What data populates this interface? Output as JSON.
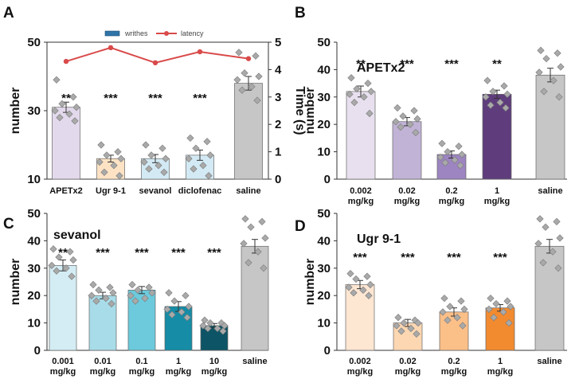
{
  "chart_data": [
    {
      "panel": "A",
      "type": "bar",
      "ylabel": "number",
      "ylim": [
        10,
        50
      ],
      "yticks": [
        10,
        30,
        50
      ],
      "categories": [
        "APETx2",
        "Ugr 9-1",
        "sevanol",
        "diclofenac",
        "saline"
      ],
      "values": [
        31,
        16,
        16,
        17,
        38
      ],
      "errors": [
        1.5,
        1.0,
        1.2,
        1.5,
        2.0
      ],
      "significance": [
        "**",
        "***",
        "***",
        "***",
        ""
      ],
      "colors": [
        "#e3d9ec",
        "#fde3c4",
        "#d3eaf5",
        "#d3eaf5",
        "#c6c6c6"
      ],
      "points": [
        [
          39,
          34,
          32,
          31,
          30,
          29,
          28,
          27
        ],
        [
          20,
          18,
          17,
          16,
          15,
          14,
          12,
          11
        ],
        [
          20,
          19,
          17,
          16,
          15,
          14,
          13,
          12
        ],
        [
          22,
          21,
          19,
          17,
          16,
          14,
          13,
          11
        ],
        [
          47,
          46,
          41,
          40,
          39,
          37,
          36,
          33
        ]
      ],
      "secondary_axis": {
        "label": "Time (s)",
        "ylim": [
          0,
          5
        ],
        "ticks": [
          0,
          1,
          2,
          3,
          4,
          5
        ]
      },
      "latency": [
        4.3,
        4.8,
        4.25,
        4.65,
        4.4
      ],
      "legend": {
        "bars": "writhes",
        "line": "latency",
        "placement": "top-center"
      },
      "line_color": "#d94a4a",
      "legend_bar_color": "#2f74a8"
    },
    {
      "panel": "B",
      "type": "bar",
      "title": "APETx2",
      "ylabel": "number",
      "ylim": [
        0,
        50
      ],
      "yticks": [
        0,
        10,
        20,
        30,
        40,
        50
      ],
      "categories": [
        [
          "0.002",
          "mg/kg"
        ],
        [
          "0.02",
          "mg/kg"
        ],
        [
          "0.2",
          "mg/kg"
        ],
        [
          "1",
          "mg/kg"
        ],
        [
          "saline"
        ]
      ],
      "values": [
        32,
        21,
        9,
        31,
        38
      ],
      "errors": [
        2.0,
        1.5,
        1.3,
        1.5,
        2.5
      ],
      "significance": [
        "**",
        "***",
        "***",
        "**",
        ""
      ],
      "colors": [
        "#e8e0ee",
        "#c1b3d6",
        "#9d85c1",
        "#5f3d7c",
        "#c6c6c6"
      ],
      "points": [
        [
          37,
          35,
          33,
          32,
          31,
          30,
          28,
          24
        ],
        [
          26,
          25,
          23,
          22,
          21,
          20,
          19,
          17
        ],
        [
          13,
          12,
          10,
          9,
          8,
          7,
          6,
          5
        ],
        [
          36,
          34,
          32,
          31,
          30,
          28,
          27,
          26
        ],
        [
          47,
          46,
          44,
          41,
          39,
          36,
          32,
          30
        ]
      ]
    },
    {
      "panel": "C",
      "type": "bar",
      "title": "sevanol",
      "ylabel": "number",
      "ylim": [
        0,
        50
      ],
      "yticks": [
        0,
        10,
        20,
        30,
        40,
        50
      ],
      "categories": [
        [
          "0.001",
          "mg/kg"
        ],
        [
          "0.01",
          "mg/kg"
        ],
        [
          "0.1",
          "mg/kg"
        ],
        [
          "1",
          "mg/kg"
        ],
        [
          "10",
          "mg/kg"
        ],
        [
          "saline"
        ]
      ],
      "values": [
        31,
        20,
        22,
        16,
        9,
        38
      ],
      "errors": [
        2.0,
        1.2,
        1.3,
        1.8,
        0.8,
        2.5
      ],
      "significance": [
        "**",
        "***",
        "***",
        "***",
        "***",
        ""
      ],
      "colors": [
        "#d4edf4",
        "#a8dce8",
        "#6ccadc",
        "#168ca6",
        "#0d5466",
        "#c6c6c6"
      ],
      "points": [
        [
          37,
          36,
          34,
          33,
          31,
          30,
          29,
          27
        ],
        [
          24,
          23,
          22,
          21,
          20,
          19,
          18,
          17
        ],
        [
          24,
          23,
          22,
          21,
          20,
          19,
          18
        ],
        [
          21,
          20,
          18,
          16,
          15,
          14,
          13,
          12
        ],
        [
          11,
          10,
          10,
          9,
          9,
          8,
          8,
          7
        ],
        [
          48,
          47,
          45,
          41,
          39,
          36,
          32,
          30
        ]
      ]
    },
    {
      "panel": "D",
      "type": "bar",
      "title": "Ugr 9-1",
      "ylabel": "number",
      "ylim": [
        0,
        50
      ],
      "yticks": [
        0,
        10,
        20,
        30,
        40,
        50
      ],
      "categories": [
        [
          "0.002",
          "mg/kg"
        ],
        [
          "0.02",
          "mg/kg"
        ],
        [
          "0.2",
          "mg/kg"
        ],
        [
          "1",
          "mg/kg"
        ],
        [
          "saline"
        ]
      ],
      "values": [
        24,
        10,
        14,
        15.5,
        38
      ],
      "errors": [
        1.5,
        1.3,
        1.5,
        1.2,
        2.5
      ],
      "significance": [
        "***",
        "***",
        "***",
        "***",
        ""
      ],
      "colors": [
        "#fde6d2",
        "#fcd7b2",
        "#fbbf88",
        "#f28b30",
        "#c6c6c6"
      ],
      "points": [
        [
          28,
          27,
          26,
          24,
          23,
          22,
          21,
          20
        ],
        [
          12,
          11,
          10,
          10,
          9,
          8,
          7,
          6
        ],
        [
          19,
          18,
          16,
          15,
          14,
          12,
          11,
          9
        ],
        [
          19,
          18,
          17,
          16,
          15,
          14,
          12,
          10
        ],
        [
          48,
          47,
          45,
          41,
          39,
          36,
          32,
          30
        ]
      ]
    }
  ]
}
